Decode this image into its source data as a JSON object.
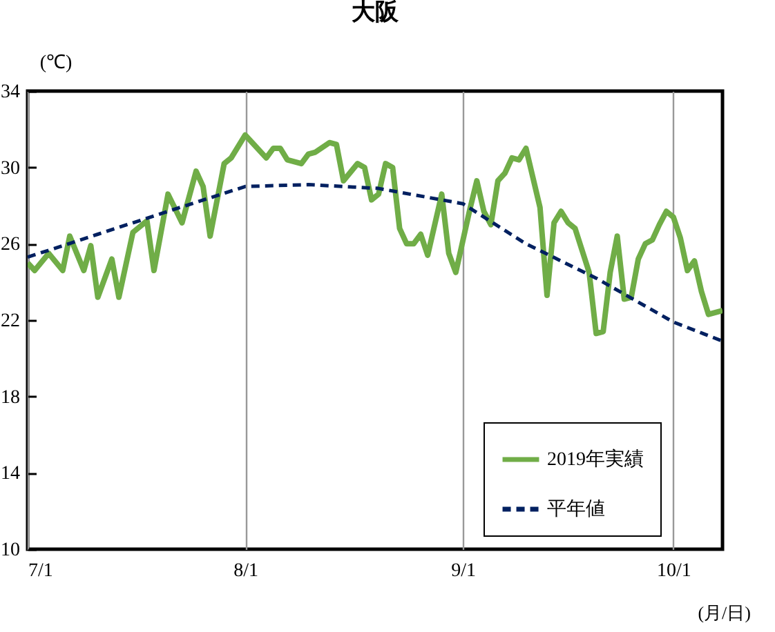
{
  "chart_data": {
    "type": "line",
    "title": "大阪",
    "ylabel": "(℃)",
    "xlabel": "(月/日)",
    "xlim": [
      "--07-01",
      "--10-08"
    ],
    "xticks": [
      {
        "value": "--07-01",
        "label": "7/1"
      },
      {
        "value": "--08-01",
        "label": "8/1"
      },
      {
        "value": "--09-01",
        "label": "9/1"
      },
      {
        "value": "--10-01",
        "label": "10/1"
      }
    ],
    "ylim": [
      10,
      34
    ],
    "yticks": [
      10,
      14,
      18,
      22,
      26,
      30,
      34
    ],
    "grid": "x",
    "legend": "bottom right",
    "marker": "none",
    "series": [
      {
        "name": "2019年実績",
        "color": "#70ad47",
        "line_style": "solid",
        "x": [
          "--07-01",
          "--07-02",
          "--07-04",
          "--07-06",
          "--07-07",
          "--07-09",
          "--07-10",
          "--07-11",
          "--07-13",
          "--07-14",
          "--07-16",
          "--07-18",
          "--07-19",
          "--07-21",
          "--07-23",
          "--07-25",
          "--07-26",
          "--07-27",
          "--07-29",
          "--07-30",
          "--08-01",
          "--08-02",
          "--08-04",
          "--08-05",
          "--08-06",
          "--08-07",
          "--08-09",
          "--08-10",
          "--08-11",
          "--08-13",
          "--08-14",
          "--08-15",
          "--08-17",
          "--08-18",
          "--08-19",
          "--08-20",
          "--08-21",
          "--08-22",
          "--08-23",
          "--08-24",
          "--08-25",
          "--08-26",
          "--08-27",
          "--08-29",
          "--08-30",
          "--08-31",
          "--09-02",
          "--09-03",
          "--09-04",
          "--09-05",
          "--09-06",
          "--09-07",
          "--09-08",
          "--09-09",
          "--09-10",
          "--09-12",
          "--09-13",
          "--09-14",
          "--09-15",
          "--09-16",
          "--09-17",
          "--09-19",
          "--09-20",
          "--09-21",
          "--09-22",
          "--09-23",
          "--09-24",
          "--09-25",
          "--09-26",
          "--09-27",
          "--09-28",
          "--09-29",
          "--09-30",
          "--10-01",
          "--10-02",
          "--10-03",
          "--10-04",
          "--10-05",
          "--10-06",
          "--10-07",
          "--10-08"
        ],
        "values": [
          25.0,
          24.6,
          25.5,
          24.6,
          26.4,
          24.6,
          25.9,
          23.2,
          25.2,
          23.2,
          26.6,
          27.2,
          24.6,
          28.6,
          27.1,
          29.8,
          29.0,
          26.4,
          30.2,
          30.5,
          31.7,
          31.3,
          30.5,
          31.0,
          31.0,
          30.4,
          30.2,
          30.7,
          30.8,
          31.3,
          31.2,
          29.3,
          30.2,
          30.0,
          28.3,
          28.6,
          30.2,
          30.0,
          26.8,
          26.0,
          26.0,
          26.5,
          25.4,
          28.6,
          25.5,
          24.5,
          27.8,
          29.3,
          27.7,
          27.0,
          29.3,
          29.7,
          30.5,
          30.4,
          31.0,
          27.9,
          23.3,
          27.1,
          27.7,
          27.1,
          26.8,
          24.5,
          21.3,
          21.4,
          24.5,
          26.4,
          23.1,
          23.2,
          25.2,
          26.0,
          26.2,
          27.0,
          27.7,
          27.4,
          26.3,
          24.6,
          25.1,
          23.5,
          22.3,
          22.4,
          22.5
        ]
      },
      {
        "name": "平年値",
        "color": "#002060",
        "line_style": "dashed",
        "x": [
          "--07-01",
          "--07-11",
          "--07-21",
          "--08-01",
          "--08-10",
          "--08-20",
          "--09-01",
          "--09-10",
          "--09-20",
          "--10-01",
          "--10-08"
        ],
        "values": [
          25.3,
          26.5,
          27.7,
          29.0,
          29.1,
          28.9,
          28.1,
          26.0,
          24.2,
          21.9,
          20.9
        ]
      }
    ]
  }
}
